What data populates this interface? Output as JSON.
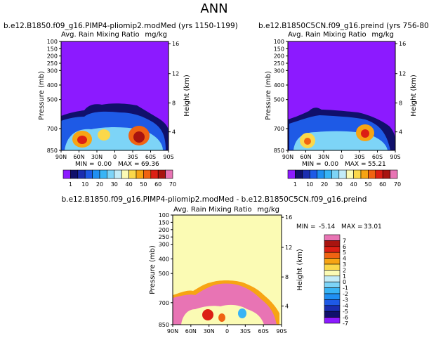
{
  "title": "ANN",
  "colors": {
    "scale_full": [
      "#8c1aff",
      "#10106b",
      "#1a2db0",
      "#1e5ae6",
      "#1f8ff2",
      "#38b4f5",
      "#7dd4f7",
      "#c3ecf7",
      "#fbfbb4",
      "#fbd84a",
      "#f7a413",
      "#f06312",
      "#dc1f14",
      "#a8140f",
      "#e874b4"
    ],
    "scale_diff": [
      "#8c1aff",
      "#10106b",
      "#1a2db0",
      "#1e5ae6",
      "#1f8ff2",
      "#38b4f5",
      "#7dd4f7",
      "#c3ecf7",
      "#fbfbb4",
      "#fbd84a",
      "#f7a413",
      "#f06312",
      "#dc1f14",
      "#a8140f",
      "#e874b4"
    ]
  },
  "chart_data": [
    {
      "type": "heatmap",
      "panel_title": "b.e12.B1850.f09_g16.PIMP4-pliomip2.modMed (yrs 1150-1199)",
      "variable": "Avg. Rain Mixing Ratio",
      "units": "mg/kg",
      "xlabel": "",
      "ylabel": "Pressure (mb)",
      "y2label": "Height (km)",
      "xticks": [
        "90N",
        "60N",
        "30N",
        "0",
        "30S",
        "60S",
        "90S"
      ],
      "yticks": [
        "100",
        "150",
        "200",
        "250",
        "300",
        "400",
        "500",
        "700",
        "850"
      ],
      "y2ticks": [
        "16",
        "12",
        "8",
        "4"
      ],
      "stats": {
        "min_label": "MIN =",
        "min": "0.00",
        "max_label": "MAX =",
        "max": "69.36"
      },
      "colorbar_labels": [
        "1",
        "10",
        "20",
        "30",
        "40",
        "50",
        "60",
        "70"
      ]
    },
    {
      "type": "heatmap",
      "panel_title": "b.e12.B1850C5CN.f09_g16.preind (yrs 756-805)",
      "variable": "Avg. Rain Mixing Ratio",
      "units": "mg/kg",
      "xlabel": "",
      "ylabel": "Pressure (mb)",
      "y2label": "Height (km)",
      "xticks": [
        "90N",
        "60N",
        "30N",
        "0",
        "30S",
        "60S",
        "90S"
      ],
      "yticks": [
        "100",
        "150",
        "200",
        "250",
        "300",
        "400",
        "500",
        "700",
        "850"
      ],
      "y2ticks": [
        "16",
        "12",
        "8",
        "4"
      ],
      "stats": {
        "min_label": "MIN =",
        "min": "0.00",
        "max_label": "MAX =",
        "max": "55.21"
      },
      "colorbar_labels": [
        "1",
        "10",
        "20",
        "30",
        "40",
        "50",
        "60",
        "70"
      ]
    },
    {
      "type": "heatmap",
      "panel_title": "b.e12.B1850.f09_g16.PIMP4-pliomip2.modMed - b.e12.B1850C5CN.f09_g16.preind",
      "variable": "Avg. Rain Mixing Ratio",
      "units": "mg/kg",
      "xlabel": "",
      "ylabel": "Pressure (mb)",
      "y2label": "Height (km)",
      "xticks": [
        "90N",
        "60N",
        "30N",
        "0",
        "30S",
        "60S",
        "90S"
      ],
      "yticks": [
        "100",
        "150",
        "200",
        "250",
        "300",
        "400",
        "500",
        "700",
        "850"
      ],
      "y2ticks": [
        "16",
        "12",
        "8",
        "4"
      ],
      "stats": {
        "min_label": "MIN =",
        "min": "-5.14",
        "max_label": "MAX =",
        "max": "33.01"
      },
      "colorbar_labels": [
        "7",
        "6",
        "5",
        "4",
        "3",
        "2",
        "1",
        "0",
        "-1",
        "-2",
        "-3",
        "-4",
        "-5",
        "-6",
        "-7"
      ]
    }
  ]
}
